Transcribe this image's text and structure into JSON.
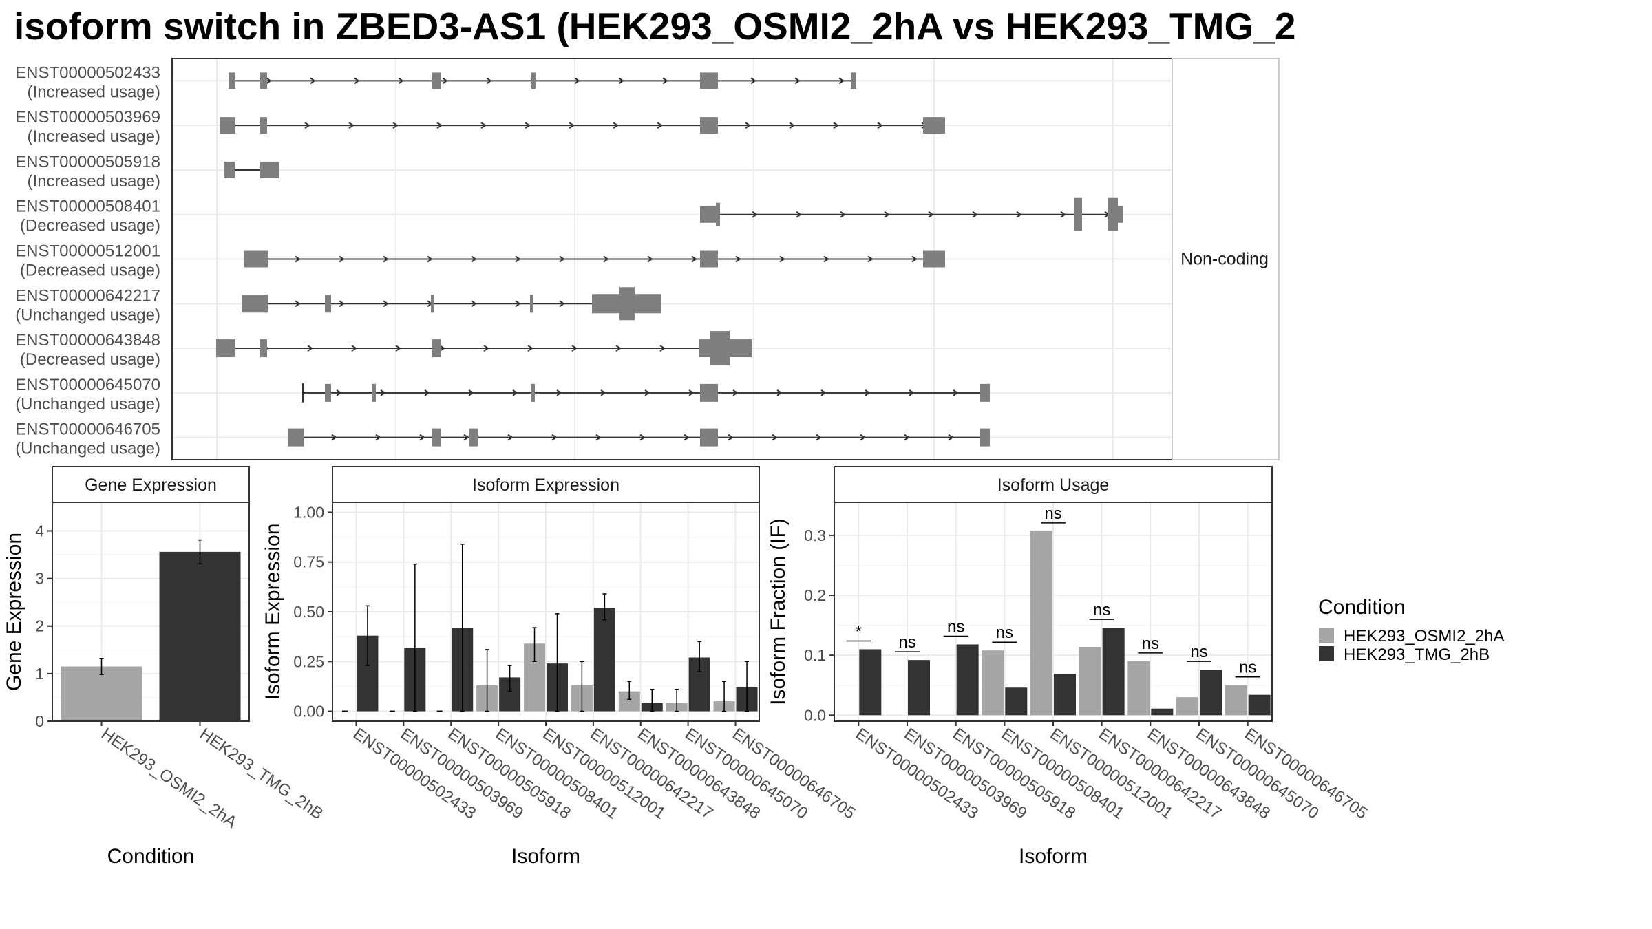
{
  "title": "isoform switch in ZBED3-AS1 (HEK293_OSMI2_2hA vs HEK293_TMG_2",
  "colors": {
    "OSMI2": "#a6a6a6",
    "TMG": "#333333",
    "exon": "#7f7f7f",
    "grid": "#ebebeb",
    "intron": "#333333"
  },
  "chart_data": [
    {
      "type": "gene-structure",
      "strip_label": "Non-coding",
      "isoforms": [
        {
          "id": "ENST00000502433",
          "usage": "(Increased usage)"
        },
        {
          "id": "ENST00000503969",
          "usage": "(Increased usage)"
        },
        {
          "id": "ENST00000505918",
          "usage": "(Increased usage)"
        },
        {
          "id": "ENST00000508401",
          "usage": "(Decreased usage)"
        },
        {
          "id": "ENST00000512001",
          "usage": "(Decreased usage)"
        },
        {
          "id": "ENST00000642217",
          "usage": "(Unchanged usage)"
        },
        {
          "id": "ENST00000643848",
          "usage": "(Decreased usage)"
        },
        {
          "id": "ENST00000645070",
          "usage": "(Unchanged usage)"
        },
        {
          "id": "ENST00000646705",
          "usage": "(Unchanged usage)"
        }
      ]
    },
    {
      "type": "bar",
      "panel_title": "Gene Expression",
      "xlabel": "Condition",
      "ylabel": "Gene Expression",
      "ylim": [
        0,
        4.6
      ],
      "yticks": [
        "0",
        "1",
        "2",
        "3",
        "4"
      ],
      "categories": [
        "HEK293_OSMI2_2hA",
        "HEK293_TMG_2hB"
      ],
      "values": [
        1.15,
        3.56
      ],
      "error_low": [
        0.98,
        3.31
      ],
      "error_high": [
        1.32,
        3.81
      ]
    },
    {
      "type": "bar",
      "panel_title": "Isoform Expression",
      "xlabel": "Isoform",
      "ylabel": "Isoform Expression",
      "ylim": [
        -0.05,
        1.05
      ],
      "yticks": [
        "0.00",
        "0.25",
        "0.50",
        "0.75",
        "1.00"
      ],
      "categories": [
        "ENST00000502433",
        "ENST00000503969",
        "ENST00000505918",
        "ENST00000508401",
        "ENST00000512001",
        "ENST00000642217",
        "ENST00000643848",
        "ENST00000645070",
        "ENST00000646705"
      ],
      "series": [
        {
          "name": "HEK293_OSMI2_2hA",
          "values": [
            0.0,
            0.0,
            0.0,
            0.13,
            0.34,
            0.13,
            0.1,
            0.04,
            0.05
          ],
          "error_low": [
            0.0,
            0.0,
            0.0,
            0.0,
            0.25,
            0.0,
            0.06,
            0.0,
            0.0
          ],
          "error_high": [
            0.0,
            0.0,
            0.0,
            0.31,
            0.42,
            0.25,
            0.15,
            0.11,
            0.15
          ]
        },
        {
          "name": "HEK293_TMG_2hB",
          "values": [
            0.38,
            0.32,
            0.42,
            0.17,
            0.24,
            0.52,
            0.04,
            0.27,
            0.12
          ],
          "error_low": [
            0.23,
            0.0,
            0.0,
            0.1,
            0.0,
            0.46,
            0.0,
            0.2,
            0.0
          ],
          "error_high": [
            0.53,
            0.74,
            0.84,
            0.23,
            0.49,
            0.59,
            0.11,
            0.35,
            0.25
          ]
        }
      ]
    },
    {
      "type": "bar",
      "panel_title": "Isoform Usage",
      "xlabel": "Isoform",
      "ylabel": "Isoform Fraction (IF)",
      "ylim": [
        -0.01,
        0.355
      ],
      "yticks": [
        "0.0",
        "0.1",
        "0.2",
        "0.3"
      ],
      "categories": [
        "ENST00000502433",
        "ENST00000503969",
        "ENST00000505918",
        "ENST00000508401",
        "ENST00000512001",
        "ENST00000642217",
        "ENST00000643848",
        "ENST00000645070",
        "ENST00000646705"
      ],
      "series": [
        {
          "name": "HEK293_OSMI2_2hA",
          "values": [
            0.0,
            0.0,
            0.0,
            0.108,
            0.307,
            0.114,
            0.09,
            0.03,
            0.05
          ]
        },
        {
          "name": "HEK293_TMG_2hB",
          "values": [
            0.11,
            0.092,
            0.118,
            0.046,
            0.069,
            0.146,
            0.011,
            0.076,
            0.034
          ]
        }
      ],
      "significance": [
        "*",
        "ns",
        "ns",
        "ns",
        "ns",
        "ns",
        "ns",
        "ns",
        "ns"
      ]
    }
  ],
  "legend": {
    "title": "Condition",
    "entries": [
      "HEK293_OSMI2_2hA",
      "HEK293_TMG_2hB"
    ]
  }
}
